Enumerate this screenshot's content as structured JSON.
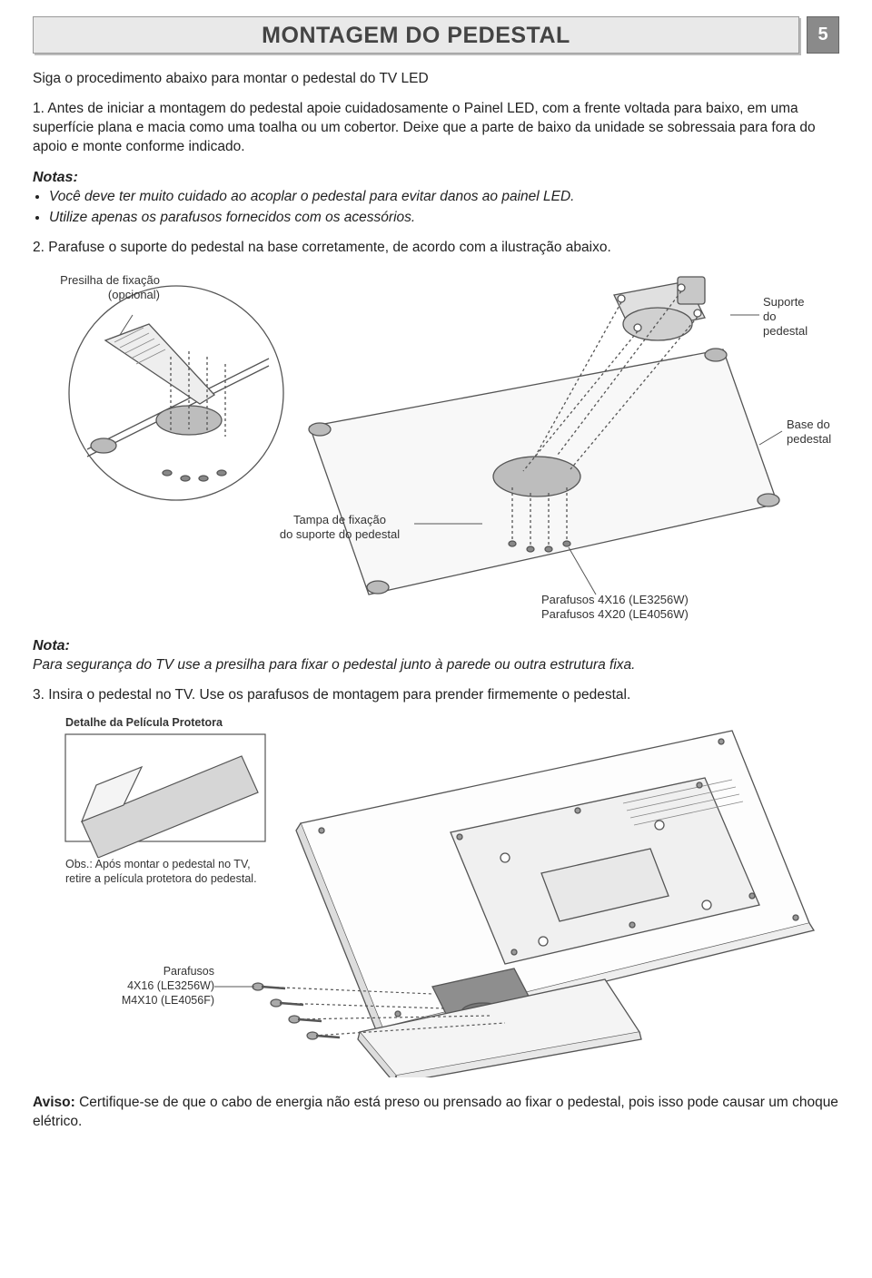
{
  "page_number": "5",
  "title": "MONTAGEM DO PEDESTAL",
  "intro": "Siga o procedimento abaixo para montar o pedestal do TV LED",
  "step1": "1. Antes de iniciar a montagem do pedestal apoie cuidadosamente o Painel LED, com a frente voltada para baixo, em uma superfície plana e macia como uma toalha ou um cobertor. Deixe que a parte de baixo da unidade se sobressaia para fora do apoio e monte conforme indicado.",
  "notas_heading": "Notas:",
  "nota_a": "Você deve ter muito cuidado ao acoplar o pedestal para evitar danos ao painel LED.",
  "nota_b": "Utilize apenas os parafusos fornecidos com os acessórios.",
  "step2": "2. Parafuse o suporte do pedestal na base corretamente, de acordo com a ilustração abaixo.",
  "diagram1": {
    "callout_presilha": "Presilha de fixação\n(opcional)",
    "callout_suporte": "Suporte\ndo\npedestal",
    "callout_base": "Base do\npedestal",
    "callout_tampa": "Tampa de fixação\ndo suporte do pedestal",
    "callout_parafusos": "Parafusos 4X16 (LE3256W)\nParafusos 4X20 (LE4056W)"
  },
  "nota2_heading": "Nota:",
  "nota2_text": "Para segurança do TV use a presilha para fixar o pedestal junto à parede ou outra estrutura fixa.",
  "step3": "3.  Insira o pedestal no TV. Use os parafusos de montagem para prender firmemente o pedestal.",
  "diagram2": {
    "label_pelicula": "Detalhe da Película Protetora",
    "obs_pelicula": "Obs.: Após montar o pedestal no TV, retire a película protetora do pedestal.",
    "label_parafusos2": "Parafusos\n4X16 (LE3256W)\nM4X10 (LE4056F)"
  },
  "aviso_label": "Aviso:",
  "aviso": " Certifique-se de que o cabo de energia não está preso ou prensado ao fixar o pedestal, pois isso pode causar um choque elétrico.",
  "colors": {
    "line": "#555555",
    "fill_light": "#f4f4f4",
    "fill_mid": "#d6d6d6",
    "fill_dark": "#9a9a9a"
  }
}
